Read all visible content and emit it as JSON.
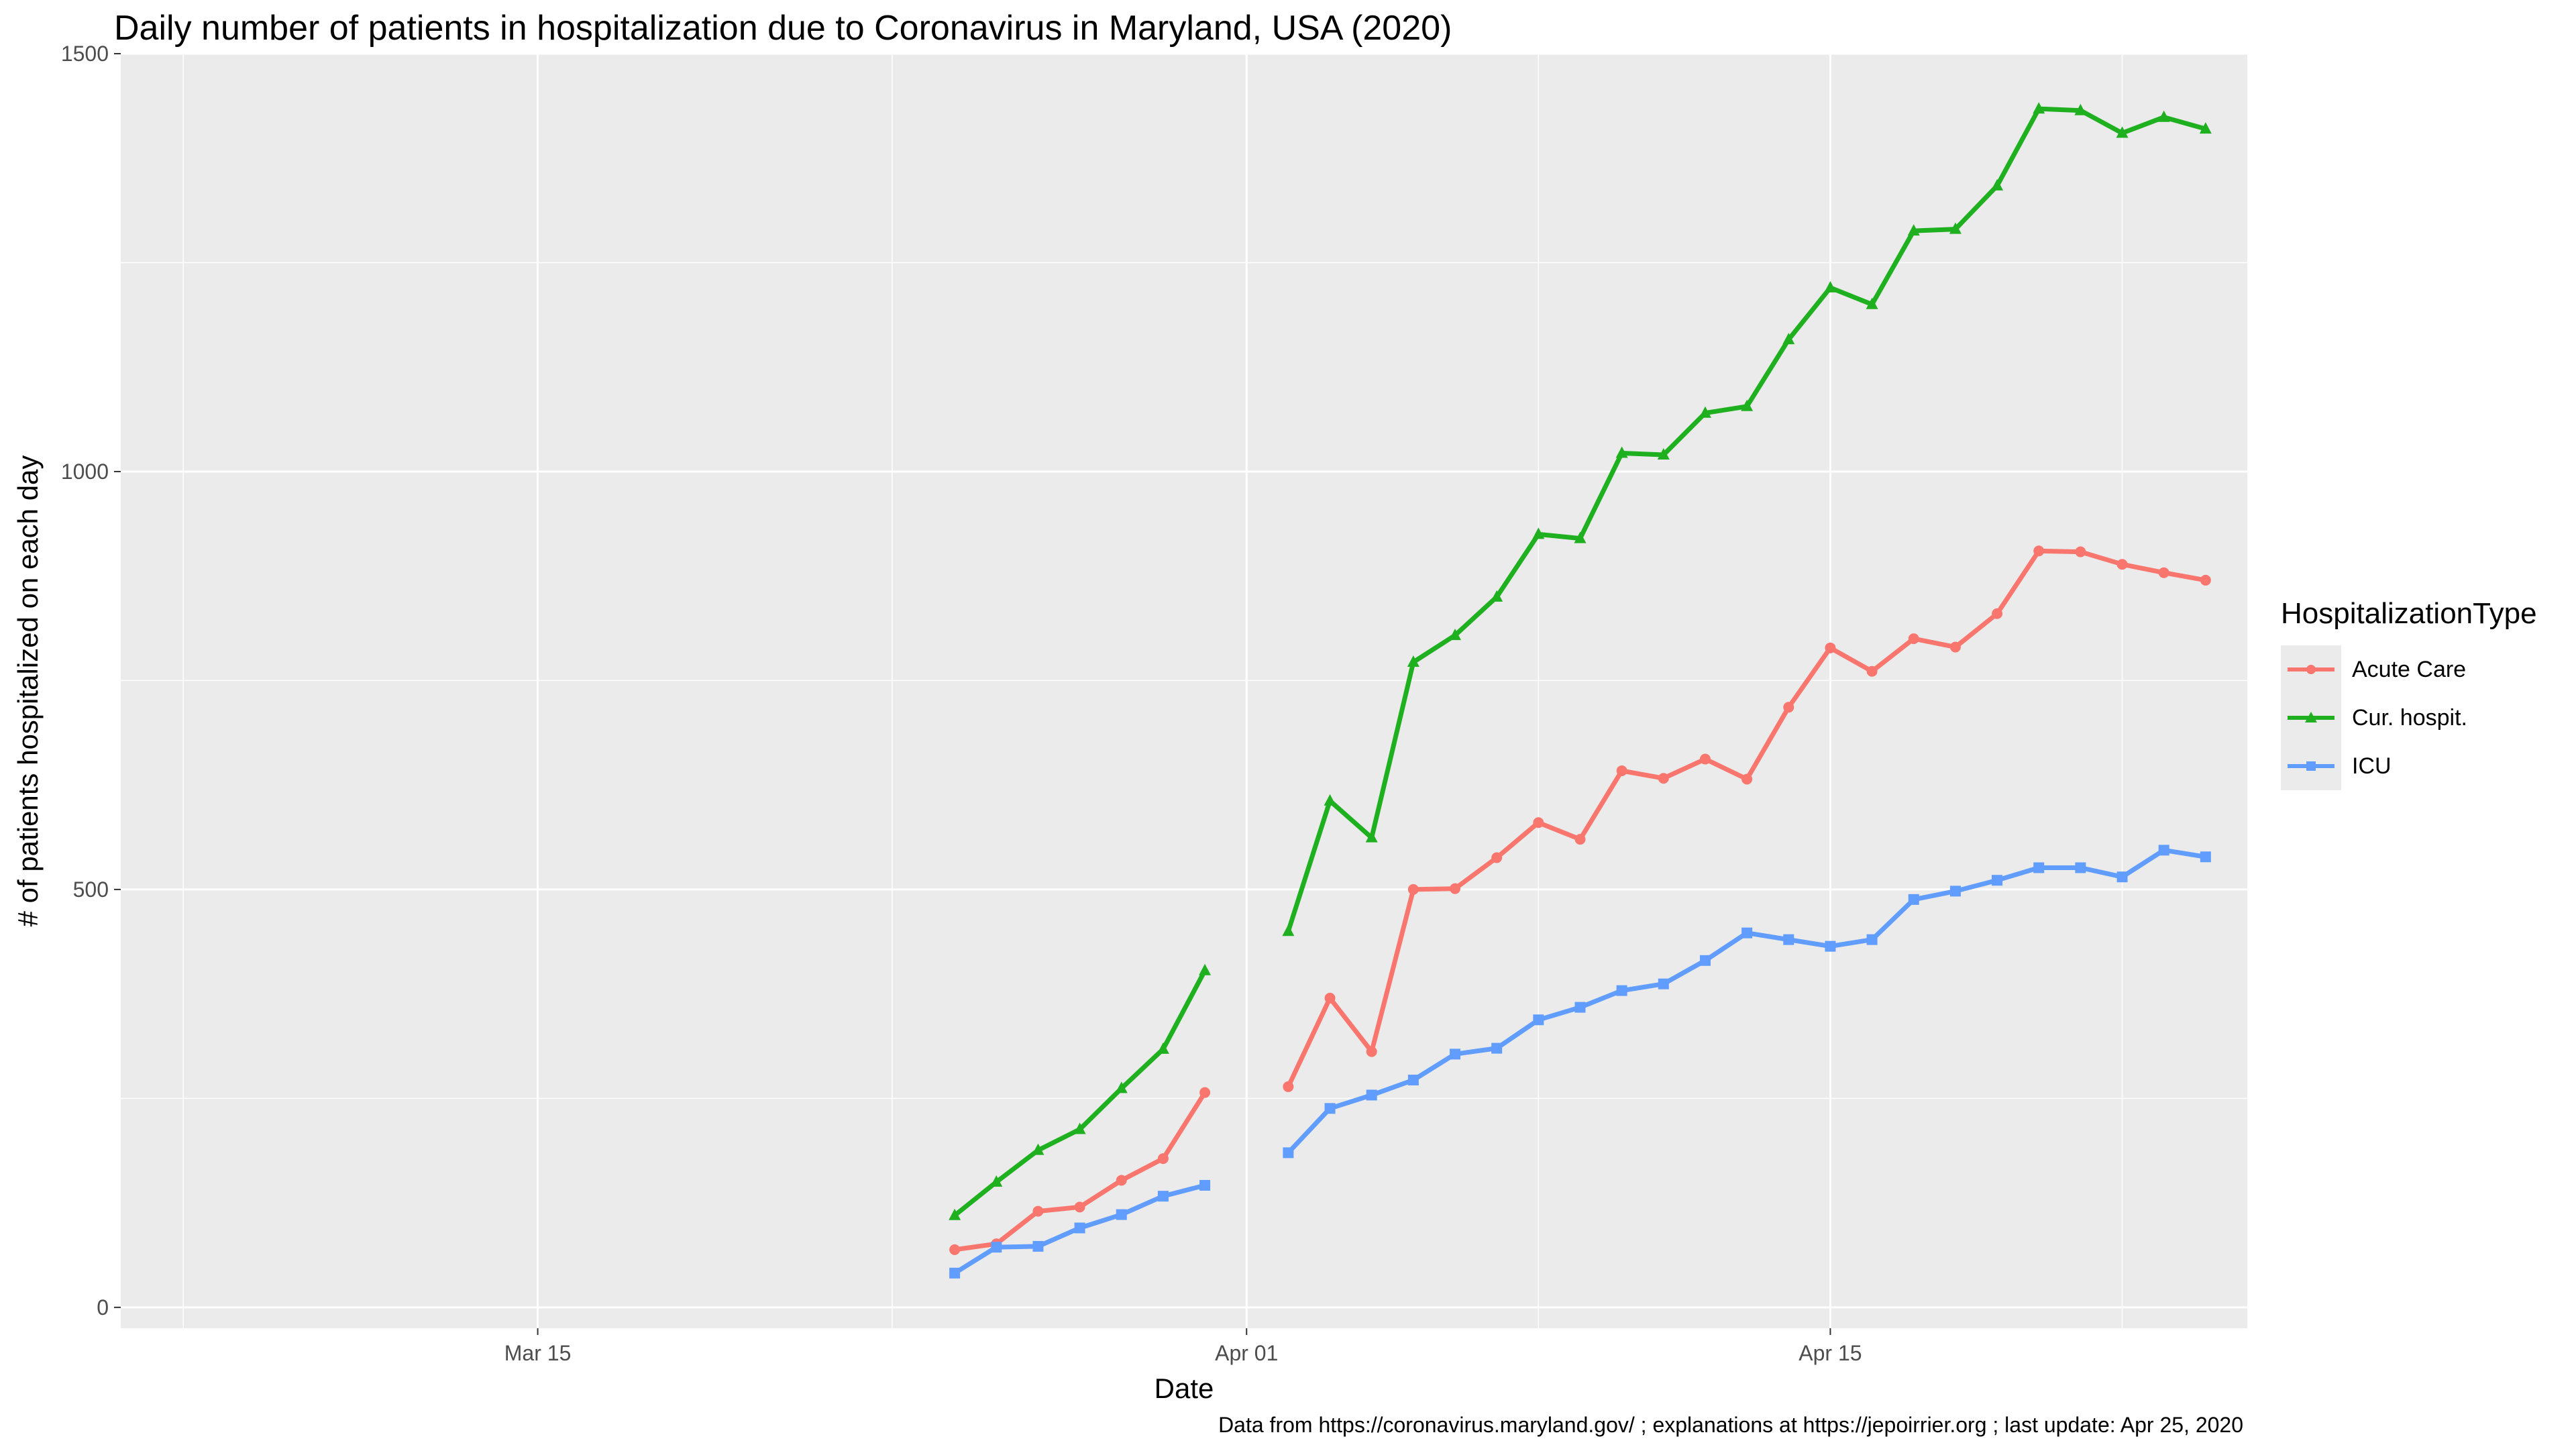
{
  "chart_data": {
    "type": "line",
    "title": "Daily number of patients in hospitalization due to Coronavirus in Maryland, USA (2020)",
    "xlabel": "Date",
    "ylabel": "# of patients hospitalized on each day",
    "caption": "Data from https://coronavirus.maryland.gov/ ; explanations at https://jepoirrier.org ; last update: Apr 25, 2020",
    "x_ticks": [
      "Mar 15",
      "Apr 01",
      "Apr 15"
    ],
    "y_ticks": [
      "0",
      "500",
      "1000",
      "1500"
    ],
    "ylim": [
      -25,
      1500
    ],
    "xlim": [
      "2020-03-05",
      "2020-04-25"
    ],
    "grid": true,
    "legend": {
      "title": "HospitalizationType",
      "position": "right"
    },
    "x": [
      "2020-03-25",
      "2020-03-26",
      "2020-03-27",
      "2020-03-28",
      "2020-03-29",
      "2020-03-30",
      "2020-03-31",
      "2020-04-01",
      "2020-04-02",
      "2020-04-03",
      "2020-04-04",
      "2020-04-05",
      "2020-04-06",
      "2020-04-07",
      "2020-04-08",
      "2020-04-09",
      "2020-04-10",
      "2020-04-11",
      "2020-04-12",
      "2020-04-13",
      "2020-04-14",
      "2020-04-15",
      "2020-04-16",
      "2020-04-17",
      "2020-04-18",
      "2020-04-19",
      "2020-04-20",
      "2020-04-21",
      "2020-04-22",
      "2020-04-23",
      "2020-04-24",
      "2020-04-25",
      "2020-04-26"
    ],
    "series": [
      {
        "name": "Acute Care",
        "color": "#f8766d",
        "marker": "circle",
        "values": [
          69,
          76,
          115,
          120,
          152,
          178,
          257,
          null,
          264,
          370,
          306,
          500,
          501,
          538,
          580,
          560,
          642,
          633,
          656,
          632,
          718,
          789,
          761,
          800,
          790,
          830,
          905,
          904,
          889,
          879,
          870,
          null,
          null
        ]
      },
      {
        "name": "Cur. hospit.",
        "color": "#1fb01f",
        "marker": "triangle",
        "values": [
          110,
          150,
          188,
          213,
          262,
          309,
          403,
          null,
          450,
          606,
          562,
          772,
          804,
          850,
          925,
          920,
          1022,
          1020,
          1070,
          1078,
          1158,
          1220,
          1200,
          1288,
          1290,
          1342,
          1434,
          1432,
          1405,
          1424,
          1410,
          null,
          null
        ]
      },
      {
        "name": "ICU",
        "color": "#619cff",
        "marker": "square",
        "values": [
          41,
          72,
          73,
          95,
          111,
          133,
          146,
          null,
          185,
          238,
          254,
          272,
          303,
          310,
          344,
          359,
          379,
          387,
          415,
          448,
          440,
          432,
          440,
          488,
          498,
          511,
          526,
          526,
          515,
          547,
          539,
          null,
          null
        ]
      }
    ]
  }
}
